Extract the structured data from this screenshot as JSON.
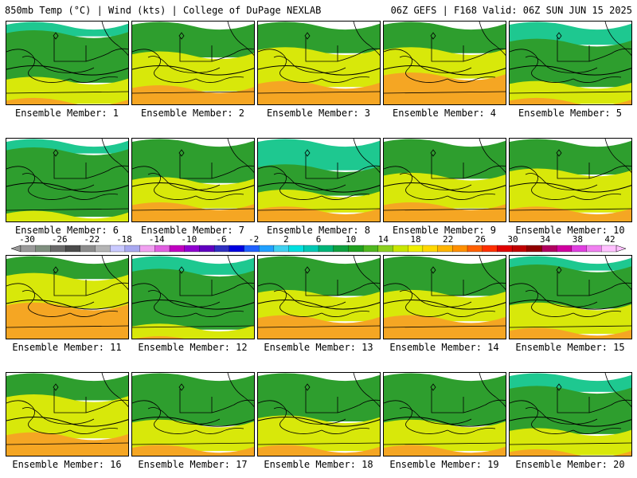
{
  "header": {
    "left": "850mb Temp (°C) | Wind (kts) | College of DuPage NEXLAB",
    "right": "06Z GEFS | F168 Valid: 06Z SUN JUN 15 2025"
  },
  "member_label_prefix": "Ensemble Member: ",
  "members": [
    {
      "number": 1,
      "field": {
        "green": 0.55,
        "yellow": 0.25,
        "orange": 0.1,
        "teal": 0.1
      }
    },
    {
      "number": 2,
      "field": {
        "green": 0.35,
        "yellow": 0.4,
        "orange": 0.25,
        "teal": 0.0
      }
    },
    {
      "number": 3,
      "field": {
        "green": 0.3,
        "yellow": 0.4,
        "orange": 0.3,
        "teal": 0.0
      }
    },
    {
      "number": 4,
      "field": {
        "green": 0.3,
        "yellow": 0.3,
        "orange": 0.4,
        "teal": 0.0
      }
    },
    {
      "number": 5,
      "field": {
        "green": 0.5,
        "yellow": 0.2,
        "orange": 0.1,
        "teal": 0.2
      }
    },
    {
      "number": 6,
      "field": {
        "green": 0.75,
        "yellow": 0.15,
        "orange": 0.0,
        "teal": 0.1
      }
    },
    {
      "number": 7,
      "field": {
        "green": 0.45,
        "yellow": 0.3,
        "orange": 0.25,
        "teal": 0.0
      }
    },
    {
      "number": 8,
      "field": {
        "green": 0.3,
        "yellow": 0.2,
        "orange": 0.2,
        "teal": 0.3
      }
    },
    {
      "number": 9,
      "field": {
        "green": 0.4,
        "yellow": 0.35,
        "orange": 0.25,
        "teal": 0.0
      }
    },
    {
      "number": 10,
      "field": {
        "green": 0.35,
        "yellow": 0.45,
        "orange": 0.2,
        "teal": 0.0
      }
    },
    {
      "number": 11,
      "field": {
        "green": 0.2,
        "yellow": 0.35,
        "orange": 0.45,
        "teal": 0.0
      }
    },
    {
      "number": 12,
      "field": {
        "green": 0.65,
        "yellow": 0.15,
        "orange": 0.05,
        "teal": 0.15
      }
    },
    {
      "number": 13,
      "field": {
        "green": 0.4,
        "yellow": 0.3,
        "orange": 0.3,
        "teal": 0.0
      }
    },
    {
      "number": 14,
      "field": {
        "green": 0.4,
        "yellow": 0.3,
        "orange": 0.3,
        "teal": 0.0
      }
    },
    {
      "number": 15,
      "field": {
        "green": 0.45,
        "yellow": 0.3,
        "orange": 0.15,
        "teal": 0.1
      }
    },
    {
      "number": 16,
      "field": {
        "green": 0.25,
        "yellow": 0.45,
        "orange": 0.3,
        "teal": 0.0
      }
    },
    {
      "number": 17,
      "field": {
        "green": 0.55,
        "yellow": 0.3,
        "orange": 0.15,
        "teal": 0.0
      }
    },
    {
      "number": 18,
      "field": {
        "green": 0.5,
        "yellow": 0.35,
        "orange": 0.15,
        "teal": 0.0
      }
    },
    {
      "number": 19,
      "field": {
        "green": 0.55,
        "yellow": 0.3,
        "orange": 0.15,
        "teal": 0.0
      }
    },
    {
      "number": 20,
      "field": {
        "green": 0.5,
        "yellow": 0.25,
        "orange": 0.1,
        "teal": 0.15
      }
    }
  ],
  "colorbar": {
    "labels": [
      "-30",
      "-26",
      "-22",
      "-18",
      "-14",
      "-10",
      "-6",
      "-2",
      "2",
      "6",
      "10",
      "14",
      "18",
      "22",
      "26",
      "30",
      "34",
      "38",
      "42"
    ],
    "colors": [
      "#9a9a9a",
      "#7f8f7f",
      "#6a6a6a",
      "#4c4c4c",
      "#8c8c8c",
      "#b4b4b4",
      "#c9c9ff",
      "#a8a8f0",
      "#f0a0f0",
      "#e060e0",
      "#c000c0",
      "#9000d0",
      "#6000c0",
      "#3030c0",
      "#0000e0",
      "#2060ff",
      "#20a0ff",
      "#40d0f0",
      "#00e0e0",
      "#00c8b4",
      "#00b478",
      "#10a040",
      "#20a020",
      "#50b820",
      "#8cd020",
      "#c8e600",
      "#f0f000",
      "#ffd800",
      "#ffb400",
      "#ff9000",
      "#ff6000",
      "#ff3000",
      "#e00000",
      "#c00000",
      "#900000",
      "#b00060",
      "#d000a0",
      "#e040e0",
      "#f080f0",
      "#ffc0ff"
    ]
  },
  "colors": {
    "green": "#2e9e2e",
    "yellow": "#d8e80a",
    "orange": "#f5a623",
    "teal": "#1ec890"
  }
}
